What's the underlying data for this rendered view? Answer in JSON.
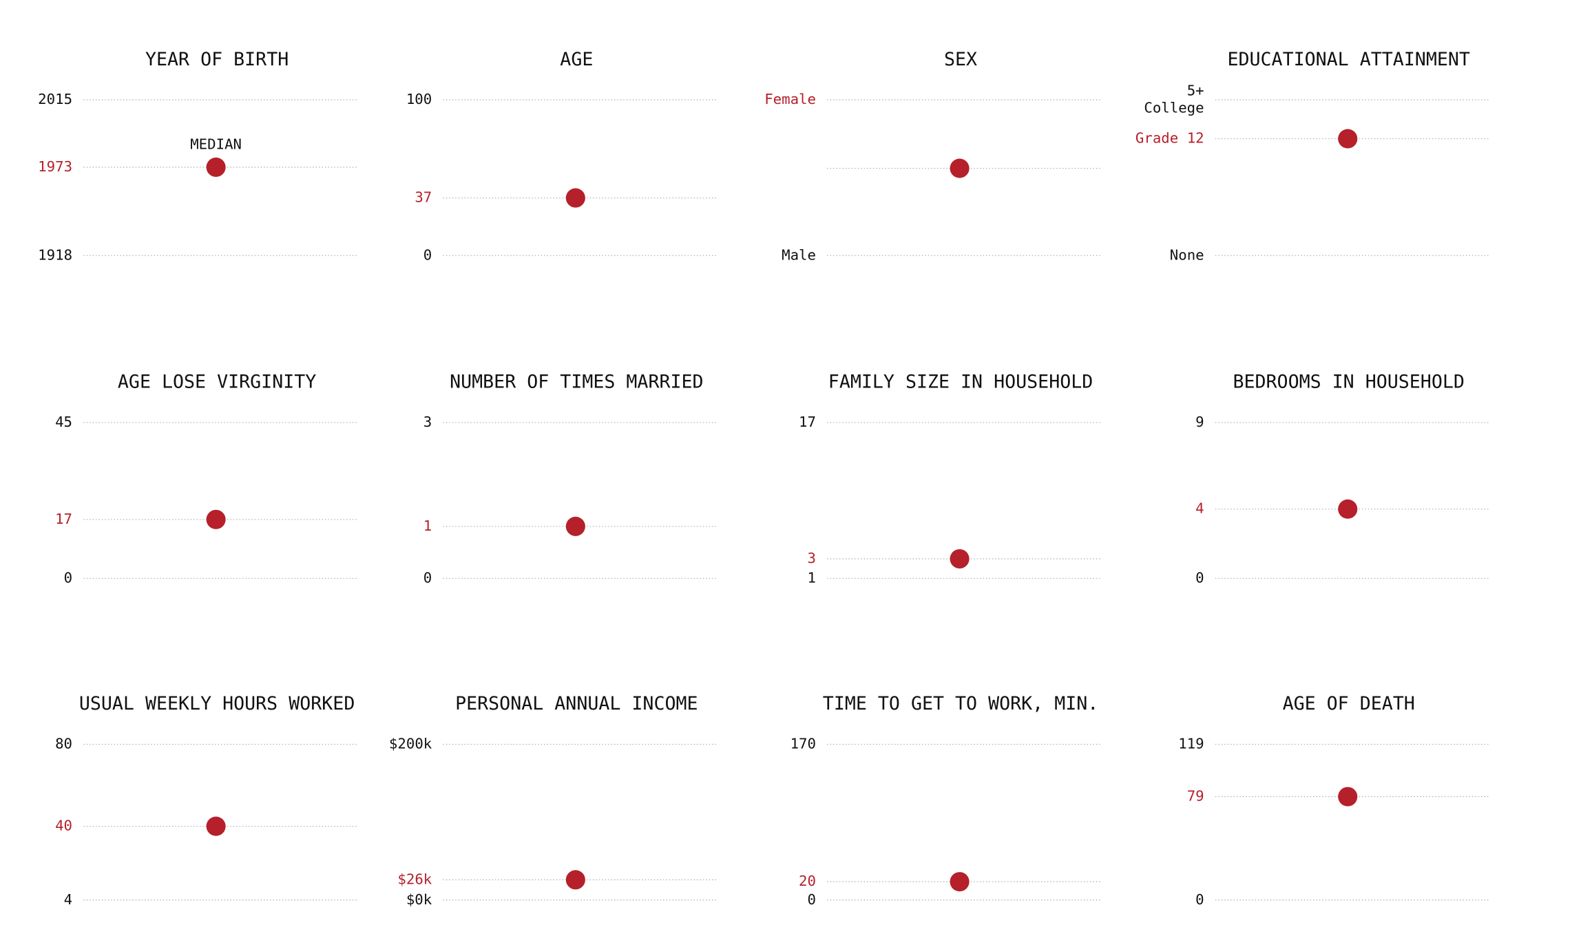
{
  "chart_data": [
    {
      "type": "dot",
      "title": "YEAR OF BIRTH",
      "values": [
        1973
      ],
      "color": "#b5202a",
      "annotation": "MEDIAN",
      "ylim": [
        1918,
        2015
      ],
      "yticks": [
        1918,
        2015
      ]
    },
    {
      "type": "dot",
      "title": "AGE",
      "values": [
        37
      ],
      "color": "#b5202a",
      "ylim": [
        0,
        100
      ],
      "yticks": [
        0,
        100
      ]
    },
    {
      "type": "dot",
      "title": "SEX",
      "values": [
        0.56
      ],
      "color": "#b5202a",
      "show_value_label": false,
      "ylim": [
        0,
        1
      ],
      "yticks": [
        {
          "value": 0,
          "label": "Male"
        },
        {
          "value": 1,
          "label": "Female",
          "color": "#b5202a"
        }
      ]
    },
    {
      "type": "dot",
      "title": "EDUCATIONAL ATTAINMENT",
      "values": [
        12
      ],
      "value_labels": [
        "Grade 12"
      ],
      "color": "#b5202a",
      "ylim": [
        0,
        16
      ],
      "yticks": [
        {
          "value": 0,
          "label": "None"
        },
        {
          "value": 16,
          "label": "5+\nCollege"
        }
      ]
    },
    {
      "type": "dot",
      "title": "AGE LOSE VIRGINITY",
      "values": [
        17
      ],
      "color": "#b5202a",
      "ylim": [
        0,
        45
      ],
      "yticks": [
        0,
        45
      ]
    },
    {
      "type": "dot",
      "title": "NUMBER OF TIMES MARRIED",
      "values": [
        1
      ],
      "color": "#b5202a",
      "ylim": [
        0,
        3
      ],
      "yticks": [
        0,
        3
      ]
    },
    {
      "type": "dot",
      "title": "FAMILY SIZE IN HOUSEHOLD",
      "values": [
        3
      ],
      "color": "#b5202a",
      "ylim": [
        1,
        17
      ],
      "yticks": [
        1,
        17
      ]
    },
    {
      "type": "dot",
      "title": "BEDROOMS IN HOUSEHOLD",
      "values": [
        4
      ],
      "color": "#b5202a",
      "ylim": [
        0,
        9
      ],
      "yticks": [
        0,
        9
      ]
    },
    {
      "type": "dot",
      "title": "USUAL WEEKLY HOURS WORKED",
      "values": [
        40
      ],
      "color": "#b5202a",
      "ylim": [
        4,
        80
      ],
      "yticks": [
        4,
        80
      ]
    },
    {
      "type": "dot",
      "title": "PERSONAL ANNUAL INCOME",
      "values": [
        26000
      ],
      "value_labels": [
        "$26k"
      ],
      "color": "#b5202a",
      "ylim": [
        0,
        200000
      ],
      "yticks": [
        {
          "value": 0,
          "label": "$0k"
        },
        {
          "value": 200000,
          "label": "$200k"
        }
      ]
    },
    {
      "type": "dot",
      "title": "TIME TO GET TO WORK, MIN.",
      "values": [
        20
      ],
      "color": "#b5202a",
      "ylim": [
        0,
        170
      ],
      "yticks": [
        0,
        170
      ]
    },
    {
      "type": "dot",
      "title": "AGE OF DEATH",
      "values": [
        79
      ],
      "color": "#b5202a",
      "ylim": [
        0,
        119
      ],
      "yticks": [
        0,
        119
      ]
    }
  ]
}
